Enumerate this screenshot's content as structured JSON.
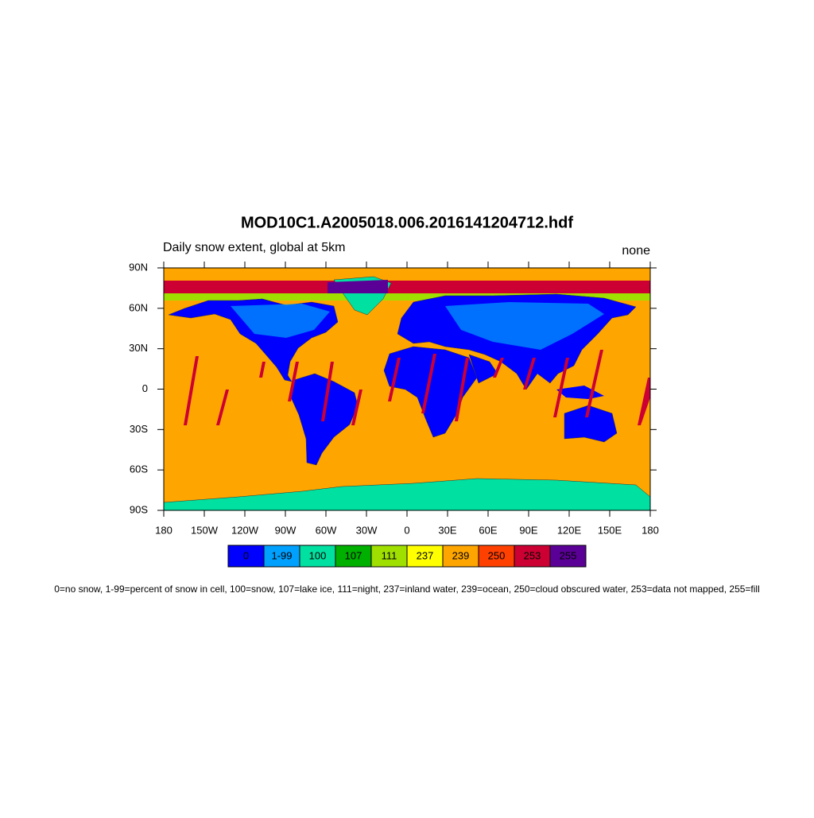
{
  "chart_data": {
    "type": "map",
    "title": "MOD10C1.A2005018.006.2016141204712.hdf",
    "subtitle": "Daily snow extent, global at 5km",
    "right_label": "none",
    "xlim": [
      -180,
      180
    ],
    "ylim": [
      -90,
      90
    ],
    "xticks": [
      {
        "value": -180,
        "label": "180"
      },
      {
        "value": -150,
        "label": "150W"
      },
      {
        "value": -120,
        "label": "120W"
      },
      {
        "value": -90,
        "label": "90W"
      },
      {
        "value": -60,
        "label": "60W"
      },
      {
        "value": -30,
        "label": "30W"
      },
      0,
      {
        "value": 30,
        "label": "30E"
      },
      {
        "value": 60,
        "label": "60E"
      },
      {
        "value": 90,
        "label": "90E"
      },
      {
        "value": 120,
        "label": "120E"
      },
      {
        "value": 150,
        "label": "150E"
      },
      {
        "value": 180,
        "label": "180"
      }
    ],
    "yticks": [
      {
        "value": 90,
        "label": "90N"
      },
      {
        "value": 60,
        "label": "60N"
      },
      {
        "value": 30,
        "label": "30N"
      },
      0,
      {
        "value": -30,
        "label": "30S"
      },
      {
        "value": -60,
        "label": "60S"
      },
      {
        "value": -90,
        "label": "90S"
      }
    ],
    "legend": [
      {
        "label": "0",
        "color": "#0000ff"
      },
      {
        "label": "1-99",
        "color": "#00a0ff"
      },
      {
        "label": "100",
        "color": "#00e0a0"
      },
      {
        "label": "107",
        "color": "#00b000"
      },
      {
        "label": "111",
        "color": "#a0e000"
      },
      {
        "label": "237",
        "color": "#ffff00"
      },
      {
        "label": "239",
        "color": "#ffa500"
      },
      {
        "label": "250",
        "color": "#ff4000"
      },
      {
        "label": "253",
        "color": "#cc0033"
      },
      {
        "label": "255",
        "color": "#5a0096"
      }
    ],
    "footnote": "0=no snow, 1-99=percent of snow in cell, 100=snow, 107=lake ice, 111=night, 237=inland water, 239=ocean, 250=cloud obscured water, 253=data not mapped, 255=fill"
  }
}
